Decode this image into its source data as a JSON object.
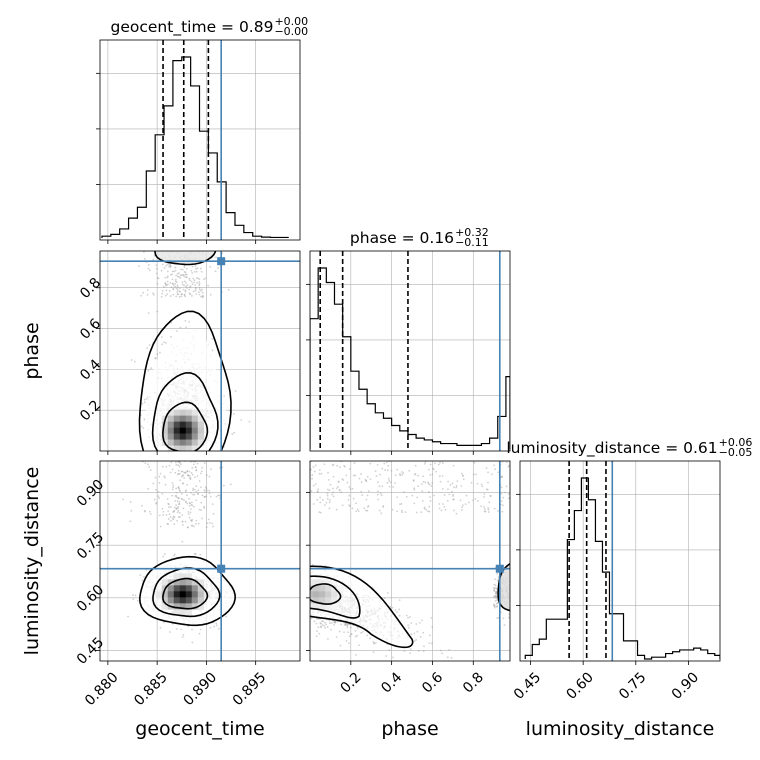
{
  "chart_data": {
    "type": "corner",
    "parameters": [
      "geocent_time",
      "phase",
      "luminosity_distance"
    ],
    "truth": {
      "geocent_time": 0.8915,
      "phase": 0.93,
      "luminosity_distance": 0.683
    },
    "axis_labels": {
      "x": [
        "geocent_time",
        "phase",
        "luminosity_distance"
      ],
      "y": [
        "phase",
        "luminosity_distance"
      ]
    },
    "ticks": {
      "geocent_time": {
        "labels": [
          "0.880",
          "0.885",
          "0.890",
          "0.895"
        ],
        "values": [
          0.88,
          0.885,
          0.89,
          0.895
        ]
      },
      "phase": {
        "labels": [
          "0.2",
          "0.4",
          "0.6",
          "0.8"
        ],
        "values": [
          0.2,
          0.4,
          0.6,
          0.8
        ]
      },
      "luminosity_distance": {
        "labels": [
          "0.45",
          "0.60",
          "0.75",
          "0.90"
        ],
        "values": [
          0.45,
          0.6,
          0.75,
          0.9
        ]
      }
    },
    "ranges": {
      "geocent_time": [
        0.8792,
        0.8995
      ],
      "phase": [
        0.0,
        0.98
      ],
      "luminosity_distance": [
        0.42,
        0.99
      ]
    },
    "titles": [
      {
        "param": "geocent_time",
        "main": "geocent_time = 0.89",
        "sup": "+0.00",
        "sub": "−0.00"
      },
      {
        "param": "phase",
        "main": "phase = 0.16",
        "sup": "+0.32",
        "sub": "−0.11"
      },
      {
        "param": "luminosity_distance",
        "main": "luminosity_distance = 0.61",
        "sup": "+0.06",
        "sub": "−0.05"
      }
    ],
    "marginals": {
      "geocent_time": {
        "bin_edges": [
          0.8794,
          0.8803,
          0.8812,
          0.8821,
          0.883,
          0.8839,
          0.8848,
          0.8857,
          0.8866,
          0.8875,
          0.8884,
          0.8893,
          0.8902,
          0.8911,
          0.892,
          0.8929,
          0.8938,
          0.8947,
          0.8956,
          0.8965,
          0.8974,
          0.8983
        ],
        "counts": [
          1,
          2,
          5,
          11,
          17,
          37,
          57,
          73,
          98,
          100,
          84,
          59,
          47,
          31,
          14,
          7,
          3,
          1,
          0.5,
          0.3,
          0.3
        ],
        "quantiles": [
          0.8856,
          0.8877,
          0.8902
        ]
      },
      "phase": {
        "bin_edges": [
          0.0,
          0.04,
          0.08,
          0.12,
          0.16,
          0.2,
          0.24,
          0.28,
          0.32,
          0.36,
          0.4,
          0.44,
          0.48,
          0.52,
          0.56,
          0.6,
          0.64,
          0.68,
          0.72,
          0.76,
          0.8,
          0.84,
          0.88,
          0.92,
          0.96,
          0.98
        ],
        "counts": [
          72,
          100,
          92,
          80,
          62,
          43,
          33,
          25,
          20,
          17,
          13,
          10,
          8,
          6,
          5,
          4,
          3,
          3,
          2,
          2,
          2,
          3,
          6,
          18,
          40
        ],
        "quantiles": [
          0.05,
          0.16,
          0.48
        ]
      },
      "luminosity_distance": {
        "bin_edges": [
          0.435,
          0.455,
          0.475,
          0.495,
          0.515,
          0.535,
          0.555,
          0.575,
          0.595,
          0.615,
          0.635,
          0.655,
          0.675,
          0.695,
          0.715,
          0.735,
          0.755,
          0.775,
          0.795,
          0.815,
          0.835,
          0.855,
          0.875,
          0.895,
          0.915,
          0.935,
          0.955,
          0.975,
          0.99
        ],
        "counts": [
          2,
          8,
          11,
          22,
          22,
          22,
          66,
          82,
          100,
          88,
          65,
          48,
          25,
          25,
          10,
          10,
          2,
          0,
          1,
          1,
          3,
          4,
          5,
          5,
          6,
          5,
          3,
          2
        ],
        "quantiles": [
          0.56,
          0.61,
          0.665
        ]
      }
    },
    "pairs": [
      {
        "x": "geocent_time",
        "y": "phase",
        "density_peak": {
          "x": 0.8876,
          "y": 0.1
        },
        "contour_levels": [
          "inner",
          "middle",
          "outer"
        ]
      },
      {
        "x": "geocent_time",
        "y": "luminosity_distance",
        "density_peak": {
          "x": 0.8876,
          "y": 0.61
        },
        "contour_levels": [
          "inner",
          "middle",
          "outer"
        ]
      },
      {
        "x": "phase",
        "y": "luminosity_distance",
        "density_peak": {
          "x": 0.03,
          "y": 0.61
        },
        "contour_levels": [
          "inner",
          "middle",
          "outer"
        ]
      }
    ],
    "colors": {
      "truth": "#4682b4",
      "hist": "#000000",
      "grid": "#b0b0b0",
      "scatter": "#9a9a9a"
    },
    "grid": true
  }
}
